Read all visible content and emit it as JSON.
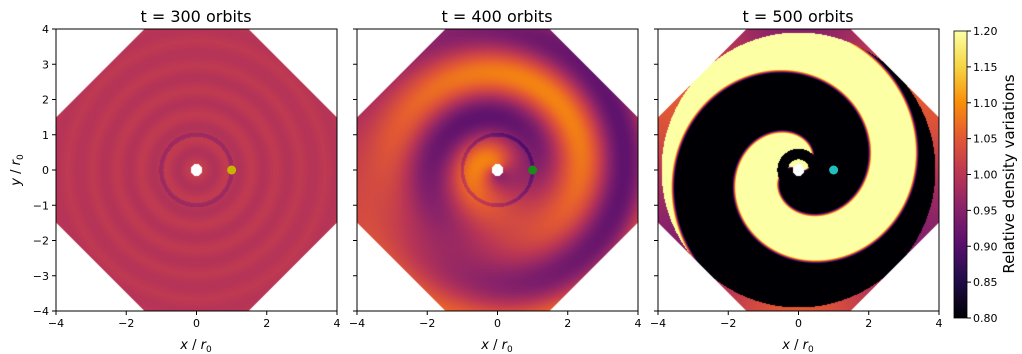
{
  "chart_data": {
    "type": "heatmap",
    "panels": [
      {
        "title": "t = 300 orbits",
        "planet": {
          "x": 1.0,
          "y": 0.0,
          "color": "#c8b400"
        },
        "spiral_amplitude": 0.02,
        "ring_amplitude": 0.01,
        "xlabel": "x / r0",
        "ylabel": "y / r0"
      },
      {
        "title": "t = 400 orbits",
        "planet": {
          "x": 1.0,
          "y": 0.0,
          "color": "#1a8a1a"
        },
        "spiral_amplitude": 0.06,
        "ring_amplitude": 0.03,
        "xlabel": "x / r0",
        "ylabel": ""
      },
      {
        "title": "t = 500 orbits",
        "planet": {
          "x": 1.0,
          "y": 0.0,
          "color": "#1fbfbf"
        },
        "spiral_amplitude": 0.3,
        "ring_amplitude": 0.0,
        "xlabel": "x / r0",
        "ylabel": ""
      }
    ],
    "xlim": [
      -4,
      4
    ],
    "ylim": [
      -4,
      4
    ],
    "xticks": [
      -4,
      -2,
      0,
      2,
      4
    ],
    "yticks": [
      -4,
      -3,
      -2,
      -1,
      0,
      1,
      2,
      3,
      4
    ],
    "colorbar": {
      "label": "Relative density variations",
      "range": [
        0.8,
        1.2
      ],
      "ticks": [
        "0.80",
        "0.85",
        "0.90",
        "0.95",
        "1.00",
        "1.05",
        "1.10",
        "1.15",
        "1.20"
      ],
      "colormap": "inferno"
    },
    "domain_outer_radius": 4.3,
    "inner_hole_radius": 0.15
  }
}
